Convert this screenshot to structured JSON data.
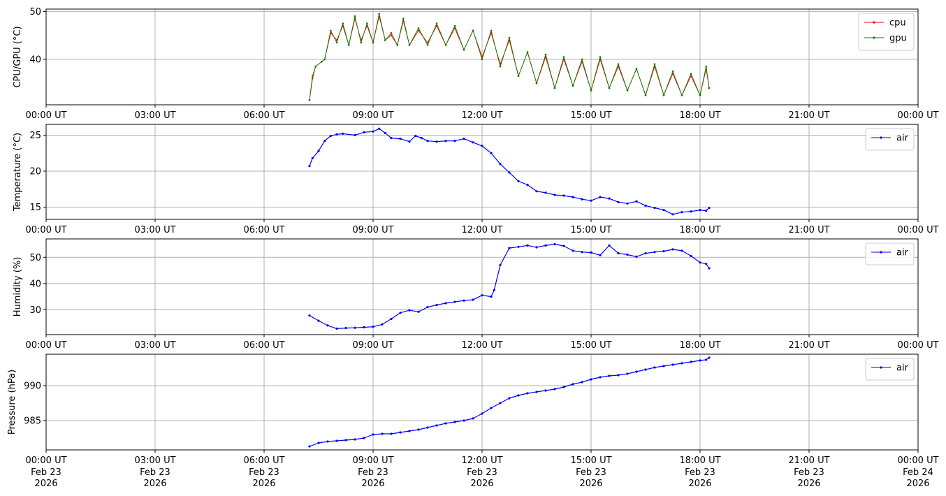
{
  "colors": {
    "cpu": "#ff0000",
    "gpu": "#008000",
    "air": "#0000ff",
    "grid": "#b0b0b0"
  },
  "x_ticks": [
    "00:00 UT",
    "03:00 UT",
    "06:00 UT",
    "09:00 UT",
    "12:00 UT",
    "15:00 UT",
    "18:00 UT",
    "21:00 UT",
    "00:00 UT"
  ],
  "x_dates": [
    [
      "Feb 23",
      "2026"
    ],
    [
      "Feb 23",
      "2026"
    ],
    [
      "Feb 23",
      "2026"
    ],
    [
      "Feb 23",
      "2026"
    ],
    [
      "Feb 23",
      "2026"
    ],
    [
      "Feb 23",
      "2026"
    ],
    [
      "Feb 23",
      "2026"
    ],
    [
      "Feb 23",
      "2026"
    ],
    [
      "Feb 24",
      "2026"
    ]
  ],
  "chart_data": [
    {
      "type": "line",
      "ylabel": "CPU/GPU (°C)",
      "xlim": [
        "2026-02-23 00:00",
        "2026-02-24 00:00"
      ],
      "ylim": [
        30.5,
        50.5
      ],
      "yticks": [
        40,
        50
      ],
      "grid": true,
      "legend": "top-right",
      "series": [
        {
          "name": "cpu",
          "color": "#ff0000",
          "style": "cpu",
          "x": [
            "07:15",
            "07:20",
            "07:25",
            "07:35",
            "07:40",
            "07:50",
            "08:00",
            "08:10",
            "08:20",
            "08:30",
            "08:40",
            "08:50",
            "09:00",
            "09:10",
            "09:20",
            "09:30",
            "09:40",
            "09:50",
            "10:00",
            "10:15",
            "10:30",
            "10:45",
            "11:00",
            "11:15",
            "11:30",
            "11:45",
            "12:00",
            "12:15",
            "12:30",
            "12:45",
            "13:00",
            "13:15",
            "13:30",
            "13:45",
            "14:00",
            "14:15",
            "14:30",
            "14:45",
            "15:00",
            "15:15",
            "15:30",
            "15:45",
            "16:00",
            "16:15",
            "16:30",
            "16:45",
            "17:00",
            "17:15",
            "17:30",
            "17:45",
            "18:00",
            "18:10",
            "18:15"
          ],
          "values": [
            31.5,
            36.5,
            38.5,
            39.5,
            40,
            45.5,
            44,
            47,
            43,
            48.5,
            44,
            47,
            43.5,
            49,
            44,
            45.5,
            43,
            48,
            43,
            46,
            43.5,
            47,
            43,
            46.5,
            42,
            46,
            40.5,
            45.5,
            39,
            44,
            36.5,
            41.5,
            35,
            40.5,
            34,
            40,
            34.5,
            39.5,
            33.5,
            40,
            34,
            38.5,
            33.5,
            38,
            32.5,
            38.5,
            32.5,
            37,
            32.5,
            36.5,
            32.5,
            38,
            34
          ]
        },
        {
          "name": "gpu",
          "color": "#008000",
          "style": "gpu",
          "x": [
            "07:15",
            "07:20",
            "07:25",
            "07:35",
            "07:40",
            "07:50",
            "08:00",
            "08:10",
            "08:20",
            "08:30",
            "08:40",
            "08:50",
            "09:00",
            "09:10",
            "09:20",
            "09:30",
            "09:40",
            "09:50",
            "10:00",
            "10:15",
            "10:30",
            "10:45",
            "11:00",
            "11:15",
            "11:30",
            "11:45",
            "12:00",
            "12:15",
            "12:30",
            "12:45",
            "13:00",
            "13:15",
            "13:30",
            "13:45",
            "14:00",
            "14:15",
            "14:30",
            "14:45",
            "15:00",
            "15:15",
            "15:30",
            "15:45",
            "16:00",
            "16:15",
            "16:30",
            "16:45",
            "17:00",
            "17:15",
            "17:30",
            "17:45",
            "18:00",
            "18:10",
            "18:15"
          ],
          "values": [
            31.5,
            36,
            38.5,
            39.5,
            40,
            46,
            43.5,
            47.5,
            43,
            49,
            43.5,
            47.5,
            43.5,
            49.5,
            44,
            45,
            43,
            48.5,
            43,
            46.5,
            43,
            47.5,
            43,
            47,
            42,
            46,
            40,
            46,
            38.5,
            44.5,
            36.5,
            41.5,
            35,
            41,
            34,
            40.5,
            34.5,
            40,
            33.5,
            40.5,
            34,
            39,
            33.5,
            38,
            32.5,
            39,
            32.5,
            37.5,
            32.5,
            37,
            32.5,
            38.5,
            34
          ]
        }
      ]
    },
    {
      "type": "line",
      "ylabel": "Temperature (°C)",
      "xlim": [
        "2026-02-23 00:00",
        "2026-02-24 00:00"
      ],
      "ylim": [
        13.3,
        26.5
      ],
      "yticks": [
        15,
        20,
        25
      ],
      "grid": true,
      "legend": "top-right",
      "series": [
        {
          "name": "air",
          "color": "#0000ff",
          "style": "air",
          "x": [
            "07:15",
            "07:20",
            "07:30",
            "07:40",
            "07:50",
            "08:00",
            "08:10",
            "08:30",
            "08:45",
            "09:00",
            "09:10",
            "09:20",
            "09:30",
            "09:45",
            "10:00",
            "10:10",
            "10:20",
            "10:30",
            "10:45",
            "11:00",
            "11:15",
            "11:30",
            "11:45",
            "12:00",
            "12:15",
            "12:30",
            "12:45",
            "13:00",
            "13:15",
            "13:30",
            "13:45",
            "14:00",
            "14:15",
            "14:30",
            "14:45",
            "15:00",
            "15:15",
            "15:30",
            "15:45",
            "16:00",
            "16:15",
            "16:30",
            "16:45",
            "17:00",
            "17:15",
            "17:30",
            "17:45",
            "18:00",
            "18:10",
            "18:15"
          ],
          "values": [
            20.7,
            21.8,
            22.8,
            24.2,
            24.9,
            25.1,
            25.2,
            25.0,
            25.4,
            25.5,
            25.9,
            25.3,
            24.6,
            24.5,
            24.1,
            24.9,
            24.6,
            24.2,
            24.1,
            24.2,
            24.2,
            24.5,
            24.0,
            23.5,
            22.5,
            21.0,
            19.8,
            18.6,
            18.1,
            17.2,
            17.0,
            16.7,
            16.6,
            16.4,
            16.1,
            15.9,
            16.4,
            16.2,
            15.7,
            15.5,
            15.8,
            15.2,
            14.9,
            14.6,
            14.0,
            14.3,
            14.4,
            14.6,
            14.5,
            14.9
          ]
        }
      ]
    },
    {
      "type": "line",
      "ylabel": "Humidity (%)",
      "xlim": [
        "2026-02-23 00:00",
        "2026-02-24 00:00"
      ],
      "ylim": [
        20.5,
        57
      ],
      "yticks": [
        30,
        40,
        50
      ],
      "grid": true,
      "legend": "top-right",
      "series": [
        {
          "name": "air",
          "color": "#0000ff",
          "style": "air",
          "x": [
            "07:15",
            "07:30",
            "07:45",
            "08:00",
            "08:15",
            "08:30",
            "08:45",
            "09:00",
            "09:15",
            "09:30",
            "09:45",
            "10:00",
            "10:15",
            "10:30",
            "10:45",
            "11:00",
            "11:15",
            "11:30",
            "11:45",
            "12:00",
            "12:15",
            "12:20",
            "12:30",
            "12:45",
            "13:00",
            "13:15",
            "13:30",
            "13:45",
            "14:00",
            "14:15",
            "14:30",
            "14:45",
            "15:00",
            "15:15",
            "15:30",
            "15:45",
            "16:00",
            "16:15",
            "16:30",
            "16:45",
            "17:00",
            "17:15",
            "17:30",
            "17:45",
            "18:00",
            "18:10",
            "18:15"
          ],
          "values": [
            27.8,
            25.8,
            24.0,
            22.8,
            23.0,
            23.1,
            23.3,
            23.5,
            24.4,
            26.5,
            28.8,
            29.8,
            29.2,
            31.0,
            31.8,
            32.5,
            33.0,
            33.5,
            33.8,
            35.5,
            35.0,
            37.5,
            47.0,
            53.5,
            54.0,
            54.5,
            53.8,
            54.5,
            55.0,
            54.3,
            52.5,
            52.0,
            51.8,
            50.8,
            54.5,
            51.5,
            51.0,
            50.2,
            51.5,
            52.0,
            52.3,
            53.0,
            52.5,
            50.5,
            48.0,
            47.5,
            45.8
          ]
        }
      ]
    },
    {
      "type": "line",
      "ylabel": "Pressure (hPa)",
      "xlim": [
        "2026-02-23 00:00",
        "2026-02-24 00:00"
      ],
      "ylim": [
        980.8,
        994.5
      ],
      "yticks": [
        985,
        990
      ],
      "grid": true,
      "legend": "top-right",
      "series": [
        {
          "name": "air",
          "color": "#0000ff",
          "style": "air",
          "x": [
            "07:15",
            "07:30",
            "07:45",
            "08:00",
            "08:15",
            "08:30",
            "08:45",
            "09:00",
            "09:15",
            "09:30",
            "09:45",
            "10:00",
            "10:15",
            "10:30",
            "10:45",
            "11:00",
            "11:15",
            "11:30",
            "11:45",
            "12:00",
            "12:15",
            "12:30",
            "12:45",
            "13:00",
            "13:15",
            "13:30",
            "13:45",
            "14:00",
            "14:15",
            "14:30",
            "14:45",
            "15:00",
            "15:15",
            "15:30",
            "15:45",
            "16:00",
            "16:15",
            "16:30",
            "16:45",
            "17:00",
            "17:15",
            "17:30",
            "17:45",
            "18:00",
            "18:10",
            "18:15"
          ],
          "values": [
            981.3,
            981.8,
            982.0,
            982.1,
            982.2,
            982.3,
            982.5,
            983.0,
            983.1,
            983.1,
            983.3,
            983.5,
            983.7,
            984.0,
            984.3,
            984.6,
            984.8,
            985.0,
            985.3,
            986.0,
            986.8,
            987.5,
            988.2,
            988.6,
            988.9,
            989.1,
            989.3,
            989.5,
            989.8,
            990.2,
            990.5,
            990.9,
            991.2,
            991.4,
            991.5,
            991.7,
            992.0,
            992.3,
            992.6,
            992.8,
            993.0,
            993.2,
            993.4,
            993.6,
            993.7,
            994.0
          ]
        }
      ]
    }
  ]
}
